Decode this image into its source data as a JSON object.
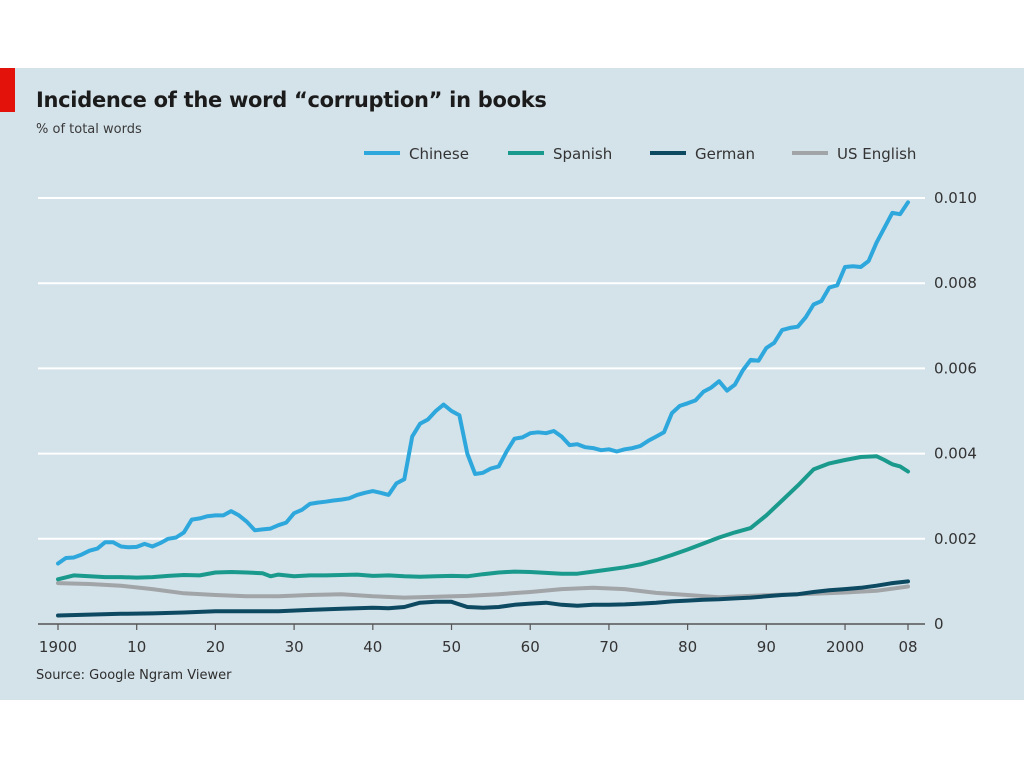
{
  "header": {
    "title": "Incidence of the word “corruption” in books",
    "subtitle": "% of total words"
  },
  "footer": {
    "source": "Source: Google Ngram Viewer"
  },
  "colors": {
    "panel_bg": "#d4e2ea",
    "accent_tag": "#e3120b",
    "gridline": "#ffffff",
    "axis": "#555555"
  },
  "chart_data": {
    "type": "line",
    "title": "Incidence of the word “corruption” in books",
    "subtitle": "% of total words",
    "xlabel": "",
    "ylabel": "",
    "xlim": [
      1900,
      2008
    ],
    "ylim": [
      0,
      0.01
    ],
    "y_axis_side": "right",
    "grid": "horizontal",
    "legend_position": "top-right",
    "x_ticks": [
      1900,
      1910,
      1920,
      1930,
      1940,
      1950,
      1960,
      1970,
      1980,
      1990,
      2000,
      2008
    ],
    "x_tick_labels": [
      "1900",
      "10",
      "20",
      "30",
      "40",
      "50",
      "60",
      "70",
      "80",
      "90",
      "2000",
      "08"
    ],
    "y_ticks": [
      0,
      0.002,
      0.004,
      0.006,
      0.008,
      0.01
    ],
    "y_tick_labels": [
      "0",
      "0.002",
      "0.004",
      "0.006",
      "0.008",
      "0.010"
    ],
    "series": [
      {
        "name": "Chinese",
        "color": "#2ea8dc",
        "points": [
          [
            1900,
            0.00142
          ],
          [
            1901,
            0.00155
          ],
          [
            1902,
            0.00156
          ],
          [
            1903,
            0.00163
          ],
          [
            1904,
            0.00172
          ],
          [
            1905,
            0.00177
          ],
          [
            1906,
            0.00192
          ],
          [
            1907,
            0.00192
          ],
          [
            1908,
            0.00182
          ],
          [
            1909,
            0.0018
          ],
          [
            1910,
            0.00181
          ],
          [
            1911,
            0.00188
          ],
          [
            1912,
            0.00182
          ],
          [
            1913,
            0.0019
          ],
          [
            1914,
            0.002
          ],
          [
            1915,
            0.00203
          ],
          [
            1916,
            0.00215
          ],
          [
            1917,
            0.00245
          ],
          [
            1918,
            0.00248
          ],
          [
            1919,
            0.00253
          ],
          [
            1920,
            0.00255
          ],
          [
            1921,
            0.00255
          ],
          [
            1922,
            0.00265
          ],
          [
            1923,
            0.00255
          ],
          [
            1924,
            0.0024
          ],
          [
            1925,
            0.0022
          ],
          [
            1926,
            0.00222
          ],
          [
            1927,
            0.00224
          ],
          [
            1928,
            0.00232
          ],
          [
            1929,
            0.00238
          ],
          [
            1930,
            0.0026
          ],
          [
            1931,
            0.00268
          ],
          [
            1932,
            0.00282
          ],
          [
            1933,
            0.00285
          ],
          [
            1934,
            0.00287
          ],
          [
            1935,
            0.0029
          ],
          [
            1936,
            0.00292
          ],
          [
            1937,
            0.00295
          ],
          [
            1938,
            0.00303
          ],
          [
            1939,
            0.00308
          ],
          [
            1940,
            0.00312
          ],
          [
            1941,
            0.00308
          ],
          [
            1942,
            0.00303
          ],
          [
            1943,
            0.0033
          ],
          [
            1944,
            0.0034
          ],
          [
            1945,
            0.0044
          ],
          [
            1946,
            0.0047
          ],
          [
            1947,
            0.0048
          ],
          [
            1948,
            0.005
          ],
          [
            1949,
            0.00515
          ],
          [
            1950,
            0.005
          ],
          [
            1951,
            0.0049
          ],
          [
            1952,
            0.004
          ],
          [
            1953,
            0.00352
          ],
          [
            1954,
            0.00355
          ],
          [
            1955,
            0.00365
          ],
          [
            1956,
            0.0037
          ],
          [
            1957,
            0.00405
          ],
          [
            1958,
            0.00435
          ],
          [
            1959,
            0.00438
          ],
          [
            1960,
            0.00448
          ],
          [
            1961,
            0.0045
          ],
          [
            1962,
            0.00448
          ],
          [
            1963,
            0.00453
          ],
          [
            1964,
            0.0044
          ],
          [
            1965,
            0.0042
          ],
          [
            1966,
            0.00422
          ],
          [
            1967,
            0.00415
          ],
          [
            1968,
            0.00413
          ],
          [
            1969,
            0.00408
          ],
          [
            1970,
            0.0041
          ],
          [
            1971,
            0.00405
          ],
          [
            1972,
            0.0041
          ],
          [
            1973,
            0.00413
          ],
          [
            1974,
            0.00418
          ],
          [
            1975,
            0.0043
          ],
          [
            1976,
            0.0044
          ],
          [
            1977,
            0.0045
          ],
          [
            1978,
            0.00495
          ],
          [
            1979,
            0.00512
          ],
          [
            1980,
            0.00518
          ],
          [
            1981,
            0.00525
          ],
          [
            1982,
            0.00545
          ],
          [
            1983,
            0.00555
          ],
          [
            1984,
            0.0057
          ],
          [
            1985,
            0.00548
          ],
          [
            1986,
            0.00562
          ],
          [
            1987,
            0.00595
          ],
          [
            1988,
            0.0062
          ],
          [
            1989,
            0.00618
          ],
          [
            1990,
            0.00648
          ],
          [
            1991,
            0.0066
          ],
          [
            1992,
            0.0069
          ],
          [
            1993,
            0.00695
          ],
          [
            1994,
            0.00698
          ],
          [
            1995,
            0.0072
          ],
          [
            1996,
            0.0075
          ],
          [
            1997,
            0.00758
          ],
          [
            1998,
            0.0079
          ],
          [
            1999,
            0.00795
          ],
          [
            2000,
            0.00838
          ],
          [
            2001,
            0.0084
          ],
          [
            2002,
            0.00838
          ],
          [
            2003,
            0.00852
          ],
          [
            2004,
            0.00895
          ],
          [
            2005,
            0.0093
          ],
          [
            2006,
            0.00965
          ],
          [
            2007,
            0.00962
          ],
          [
            2008,
            0.0099
          ]
        ]
      },
      {
        "name": "Spanish",
        "color": "#1a9a8c",
        "points": [
          [
            1900,
            0.00105
          ],
          [
            1902,
            0.00114
          ],
          [
            1904,
            0.00112
          ],
          [
            1906,
            0.0011
          ],
          [
            1908,
            0.0011
          ],
          [
            1910,
            0.00109
          ],
          [
            1912,
            0.0011
          ],
          [
            1914,
            0.00113
          ],
          [
            1916,
            0.00115
          ],
          [
            1918,
            0.00114
          ],
          [
            1920,
            0.00121
          ],
          [
            1922,
            0.00122
          ],
          [
            1924,
            0.00121
          ],
          [
            1926,
            0.00119
          ],
          [
            1927,
            0.00112
          ],
          [
            1928,
            0.00116
          ],
          [
            1930,
            0.00112
          ],
          [
            1932,
            0.00114
          ],
          [
            1934,
            0.00114
          ],
          [
            1936,
            0.00115
          ],
          [
            1938,
            0.00116
          ],
          [
            1940,
            0.00113
          ],
          [
            1942,
            0.00114
          ],
          [
            1944,
            0.00112
          ],
          [
            1946,
            0.00111
          ],
          [
            1948,
            0.00112
          ],
          [
            1950,
            0.00113
          ],
          [
            1952,
            0.00112
          ],
          [
            1954,
            0.00117
          ],
          [
            1956,
            0.00121
          ],
          [
            1958,
            0.00123
          ],
          [
            1960,
            0.00122
          ],
          [
            1962,
            0.0012
          ],
          [
            1964,
            0.00118
          ],
          [
            1966,
            0.00118
          ],
          [
            1968,
            0.00123
          ],
          [
            1970,
            0.00128
          ],
          [
            1972,
            0.00133
          ],
          [
            1974,
            0.0014
          ],
          [
            1976,
            0.0015
          ],
          [
            1978,
            0.00162
          ],
          [
            1980,
            0.00175
          ],
          [
            1982,
            0.00189
          ],
          [
            1984,
            0.00203
          ],
          [
            1986,
            0.00215
          ],
          [
            1988,
            0.00225
          ],
          [
            1990,
            0.00255
          ],
          [
            1992,
            0.0029
          ],
          [
            1994,
            0.00325
          ],
          [
            1996,
            0.00363
          ],
          [
            1998,
            0.00377
          ],
          [
            2000,
            0.00385
          ],
          [
            2002,
            0.00392
          ],
          [
            2004,
            0.00394
          ],
          [
            2005,
            0.00385
          ],
          [
            2006,
            0.00375
          ],
          [
            2007,
            0.0037
          ],
          [
            2008,
            0.00358
          ]
        ]
      },
      {
        "name": "German",
        "color": "#0d4a62",
        "points": [
          [
            1900,
            0.0002
          ],
          [
            1904,
            0.00022
          ],
          [
            1908,
            0.00024
          ],
          [
            1912,
            0.00025
          ],
          [
            1916,
            0.00027
          ],
          [
            1920,
            0.0003
          ],
          [
            1924,
            0.0003
          ],
          [
            1928,
            0.0003
          ],
          [
            1932,
            0.00033
          ],
          [
            1936,
            0.00036
          ],
          [
            1940,
            0.00038
          ],
          [
            1942,
            0.00037
          ],
          [
            1944,
            0.0004
          ],
          [
            1946,
            0.0005
          ],
          [
            1948,
            0.00052
          ],
          [
            1950,
            0.00052
          ],
          [
            1952,
            0.0004
          ],
          [
            1954,
            0.00038
          ],
          [
            1956,
            0.0004
          ],
          [
            1958,
            0.00045
          ],
          [
            1960,
            0.00048
          ],
          [
            1962,
            0.0005
          ],
          [
            1964,
            0.00045
          ],
          [
            1966,
            0.00043
          ],
          [
            1968,
            0.00045
          ],
          [
            1970,
            0.00045
          ],
          [
            1972,
            0.00046
          ],
          [
            1974,
            0.00048
          ],
          [
            1976,
            0.0005
          ],
          [
            1978,
            0.00053
          ],
          [
            1980,
            0.00055
          ],
          [
            1982,
            0.00057
          ],
          [
            1984,
            0.00058
          ],
          [
            1986,
            0.0006
          ],
          [
            1988,
            0.00062
          ],
          [
            1990,
            0.00065
          ],
          [
            1992,
            0.00068
          ],
          [
            1994,
            0.0007
          ],
          [
            1996,
            0.00075
          ],
          [
            1998,
            0.00079
          ],
          [
            2000,
            0.00082
          ],
          [
            2002,
            0.00085
          ],
          [
            2004,
            0.0009
          ],
          [
            2006,
            0.00096
          ],
          [
            2008,
            0.001
          ]
        ]
      },
      {
        "name": "US English",
        "color": "#a2a5a8",
        "points": [
          [
            1900,
            0.00096
          ],
          [
            1904,
            0.00094
          ],
          [
            1908,
            0.0009
          ],
          [
            1912,
            0.00082
          ],
          [
            1916,
            0.00072
          ],
          [
            1920,
            0.00068
          ],
          [
            1924,
            0.00065
          ],
          [
            1928,
            0.00065
          ],
          [
            1932,
            0.00068
          ],
          [
            1936,
            0.0007
          ],
          [
            1940,
            0.00065
          ],
          [
            1944,
            0.00062
          ],
          [
            1948,
            0.00064
          ],
          [
            1952,
            0.00066
          ],
          [
            1956,
            0.0007
          ],
          [
            1960,
            0.00075
          ],
          [
            1964,
            0.00082
          ],
          [
            1968,
            0.00085
          ],
          [
            1972,
            0.00082
          ],
          [
            1976,
            0.00073
          ],
          [
            1980,
            0.00068
          ],
          [
            1984,
            0.00063
          ],
          [
            1988,
            0.00066
          ],
          [
            1992,
            0.00069
          ],
          [
            1996,
            0.00071
          ],
          [
            2000,
            0.00074
          ],
          [
            2004,
            0.00078
          ],
          [
            2008,
            0.00088
          ]
        ]
      }
    ]
  }
}
